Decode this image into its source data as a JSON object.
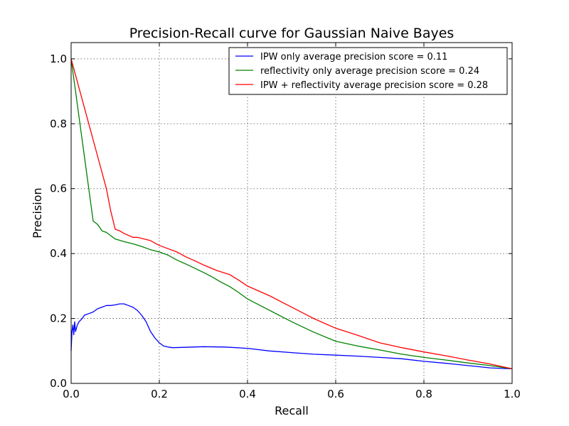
{
  "chart_data": {
    "type": "line",
    "title": "Precision-Recall curve for Gaussian Naive Bayes",
    "xlabel": "Recall",
    "ylabel": "Precision",
    "xlim": [
      0.0,
      1.0
    ],
    "ylim": [
      0.0,
      1.05
    ],
    "xticks": [
      "0.0",
      "0.2",
      "0.4",
      "0.6",
      "0.8",
      "1.0"
    ],
    "yticks": [
      "0.0",
      "0.2",
      "0.4",
      "0.6",
      "0.8",
      "1.0"
    ],
    "grid": true,
    "legend_position": "top-right",
    "series": [
      {
        "name": "IPW only average precision score = 0.11",
        "color": "#0000ff",
        "x": [
          0.0,
          0.002,
          0.004,
          0.006,
          0.008,
          0.01,
          0.014,
          0.018,
          0.025,
          0.03,
          0.04,
          0.05,
          0.06,
          0.07,
          0.08,
          0.09,
          0.1,
          0.11,
          0.12,
          0.13,
          0.14,
          0.15,
          0.16,
          0.17,
          0.18,
          0.19,
          0.2,
          0.21,
          0.22,
          0.23,
          0.25,
          0.3,
          0.35,
          0.4,
          0.45,
          0.5,
          0.55,
          0.6,
          0.65,
          0.7,
          0.75,
          0.8,
          0.85,
          0.9,
          0.95,
          0.98,
          1.0
        ],
        "y": [
          0.1,
          0.16,
          0.18,
          0.15,
          0.19,
          0.16,
          0.18,
          0.19,
          0.2,
          0.21,
          0.215,
          0.22,
          0.23,
          0.235,
          0.24,
          0.24,
          0.242,
          0.245,
          0.245,
          0.24,
          0.235,
          0.225,
          0.21,
          0.19,
          0.16,
          0.14,
          0.125,
          0.115,
          0.112,
          0.11,
          0.111,
          0.113,
          0.112,
          0.108,
          0.1,
          0.095,
          0.09,
          0.087,
          0.084,
          0.08,
          0.076,
          0.068,
          0.062,
          0.055,
          0.048,
          0.046,
          0.045
        ]
      },
      {
        "name": "reflectivity only average precision score = 0.24",
        "color": "#008000",
        "x": [
          0.0,
          0.01,
          0.02,
          0.03,
          0.04,
          0.05,
          0.06,
          0.07,
          0.08,
          0.09,
          0.1,
          0.12,
          0.14,
          0.16,
          0.18,
          0.2,
          0.22,
          0.24,
          0.26,
          0.28,
          0.3,
          0.32,
          0.34,
          0.36,
          0.38,
          0.4,
          0.45,
          0.5,
          0.55,
          0.6,
          0.65,
          0.7,
          0.75,
          0.8,
          0.85,
          0.9,
          0.95,
          1.0
        ],
        "y": [
          1.0,
          0.9,
          0.8,
          0.7,
          0.6,
          0.5,
          0.49,
          0.47,
          0.465,
          0.455,
          0.445,
          0.437,
          0.43,
          0.422,
          0.412,
          0.405,
          0.395,
          0.38,
          0.368,
          0.355,
          0.342,
          0.328,
          0.312,
          0.298,
          0.28,
          0.26,
          0.225,
          0.19,
          0.158,
          0.13,
          0.115,
          0.103,
          0.09,
          0.08,
          0.072,
          0.063,
          0.055,
          0.045
        ]
      },
      {
        "name": "IPW + reflectivity average precision score = 0.28",
        "color": "#ff0000",
        "x": [
          0.0,
          0.02,
          0.04,
          0.06,
          0.08,
          0.09,
          0.1,
          0.11,
          0.12,
          0.13,
          0.14,
          0.15,
          0.16,
          0.18,
          0.2,
          0.22,
          0.24,
          0.26,
          0.28,
          0.3,
          0.33,
          0.36,
          0.38,
          0.4,
          0.45,
          0.5,
          0.55,
          0.6,
          0.65,
          0.7,
          0.75,
          0.8,
          0.85,
          0.9,
          0.95,
          1.0
        ],
        "y": [
          1.0,
          0.9,
          0.8,
          0.7,
          0.6,
          0.53,
          0.475,
          0.47,
          0.462,
          0.456,
          0.45,
          0.45,
          0.447,
          0.44,
          0.425,
          0.415,
          0.405,
          0.39,
          0.378,
          0.365,
          0.348,
          0.335,
          0.318,
          0.3,
          0.27,
          0.235,
          0.2,
          0.17,
          0.148,
          0.125,
          0.11,
          0.097,
          0.085,
          0.072,
          0.06,
          0.045
        ]
      }
    ]
  }
}
